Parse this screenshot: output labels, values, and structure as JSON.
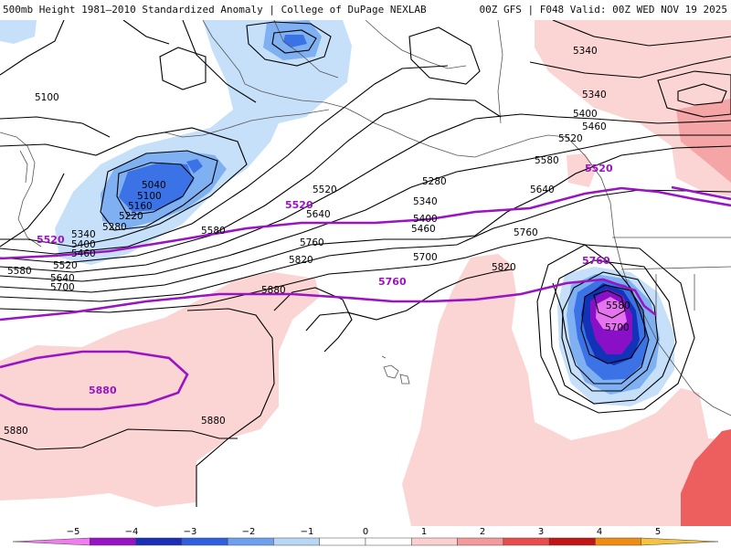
{
  "header": {
    "title_left": "500mb Height 1981–2010 Standardized Anomaly | College of DuPage NEXLAB",
    "title_right": "00Z GFS | F048 Valid: 00Z WED NOV 19 2025"
  },
  "map": {
    "black_contour_labels": [
      "5100",
      "5040",
      "5100",
      "5160",
      "5220",
      "5280",
      "5340",
      "5400",
      "5460",
      "5520",
      "5580",
      "5640",
      "5700",
      "5520",
      "5580",
      "5640",
      "5760",
      "5820",
      "5880",
      "5880",
      "5880",
      "5280",
      "5340",
      "5400",
      "5460",
      "5700",
      "5760",
      "5820",
      "5340",
      "5340",
      "5400",
      "5460",
      "5520",
      "5580",
      "5640",
      "5580",
      "5700"
    ],
    "purple_contour_labels": [
      "5520",
      "5520",
      "5520",
      "5760",
      "5760",
      "5880"
    ],
    "colors": {
      "neg1": "#c6e0fa",
      "neg2": "#7fb0f2",
      "neg3": "#3b73e6",
      "neg4": "#1233b8",
      "neg5": "#8a10c8",
      "neg6": "#e673f0",
      "pos1": "#fbd4d4",
      "pos2": "#f5a5a5",
      "pos3": "#ed5f5f",
      "black_contour": "#000000",
      "purple_contour": "#9a14c4",
      "coastline": "#555555"
    }
  },
  "colorbar": {
    "tick_labels": [
      "−5",
      "−4",
      "−3",
      "−2",
      "−1",
      "0",
      "1",
      "2",
      "3",
      "4",
      "5"
    ],
    "colors": [
      "#f07cf0",
      "#9a12c8",
      "#1a2fb8",
      "#2f5ee0",
      "#6da0ee",
      "#b8d6f6",
      "#ffffff",
      "#ffffff",
      "#fcd0d0",
      "#f49a9a",
      "#ea4b4b",
      "#c41414",
      "#f08d10",
      "#f5c242"
    ]
  }
}
